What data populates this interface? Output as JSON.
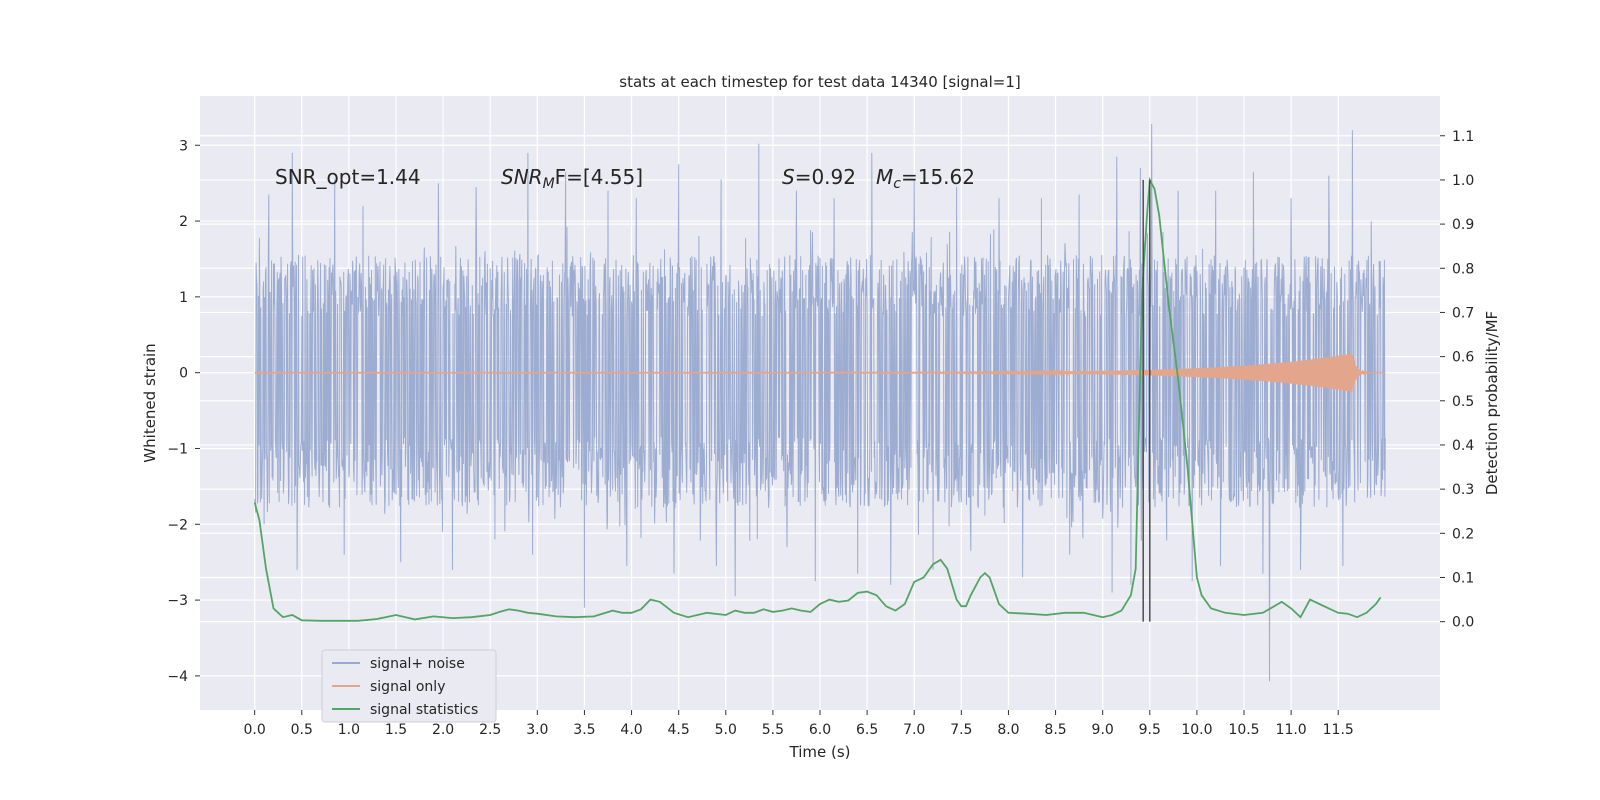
{
  "chart_data": {
    "type": "line",
    "title": "stats at each timestep for test data 14340 [signal=1]",
    "xlabel": "Time (s)",
    "ylabel": "Whitened strain",
    "ylabel_right": "Detection probability/MF",
    "xlim": [
      -0.58,
      12.58
    ],
    "ylim": [
      -4.45,
      3.65
    ],
    "ylim_right": [
      -0.2,
      1.19
    ],
    "x_ticks": [
      0.0,
      0.5,
      1.0,
      1.5,
      2.0,
      2.5,
      3.0,
      3.5,
      4.0,
      4.5,
      5.0,
      5.5,
      6.0,
      6.5,
      7.0,
      7.5,
      8.0,
      8.5,
      9.0,
      9.5,
      10.0,
      10.5,
      11.0,
      11.5
    ],
    "x_tick_labels": [
      "0.0",
      "0.5",
      "1.0",
      "1.5",
      "2.0",
      "2.5",
      "3.0",
      "3.5",
      "4.0",
      "4.5",
      "5.0",
      "5.5",
      "6.0",
      "6.5",
      "7.0",
      "7.5",
      "8.0",
      "8.5",
      "9.0",
      "9.5",
      "10.0",
      "10.5",
      "11.0",
      "11.5"
    ],
    "y_ticks": [
      -4,
      -3,
      -2,
      -1,
      0,
      1,
      2,
      3
    ],
    "y_tick_labels": [
      "−4",
      "−3",
      "−2",
      "−1",
      "0",
      "1",
      "2",
      "3"
    ],
    "y_ticks_right": [
      0.0,
      0.1,
      0.2,
      0.3,
      0.4,
      0.5,
      0.6,
      0.7,
      0.8,
      0.9,
      1.0,
      1.1
    ],
    "y_tick_labels_right": [
      "0.0",
      "0.1",
      "0.2",
      "0.3",
      "0.4",
      "0.5",
      "0.6",
      "0.7",
      "0.8",
      "0.9",
      "1.0",
      "1.1"
    ],
    "grid": true,
    "legend_position": "lower-left",
    "annotations": {
      "snr_opt": "SNR_opt=1.44",
      "snr_mf_main": "SNR",
      "snr_mf_sub": "M",
      "snr_mf_rest": "F=[4.55]",
      "s_main": "S",
      "s_rest": "=0.92",
      "mc_main": "M",
      "mc_sub": "c",
      "mc_rest": "=15.62"
    },
    "vlines_x": [
      9.43,
      9.5
    ],
    "series": [
      {
        "name": "signal+ noise",
        "color": "#99a9cf",
        "axis": "left",
        "x_range": [
          0.0,
          12.0
        ],
        "typical_envelope": [
          -1.55,
          1.35
        ],
        "peaks": [
          {
            "x": 0.05,
            "y": 1.78
          },
          {
            "x": 0.4,
            "y": 2.9
          },
          {
            "x": 0.15,
            "y": 2.35
          },
          {
            "x": 0.85,
            "y": 2.55
          },
          {
            "x": 1.15,
            "y": 2.2
          },
          {
            "x": 1.55,
            "y": 2.9
          },
          {
            "x": 1.95,
            "y": 2.5
          },
          {
            "x": 2.35,
            "y": 2.45
          },
          {
            "x": 2.9,
            "y": 2.9
          },
          {
            "x": 3.3,
            "y": 2.65
          },
          {
            "x": 3.75,
            "y": 2.4
          },
          {
            "x": 4.05,
            "y": 2.3
          },
          {
            "x": 4.5,
            "y": 2.75
          },
          {
            "x": 4.95,
            "y": 2.55
          },
          {
            "x": 5.35,
            "y": 3.02
          },
          {
            "x": 5.75,
            "y": 2.4
          },
          {
            "x": 6.15,
            "y": 2.3
          },
          {
            "x": 6.55,
            "y": 2.9
          },
          {
            "x": 7.0,
            "y": 2.55
          },
          {
            "x": 7.45,
            "y": 2.45
          },
          {
            "x": 7.9,
            "y": 2.3
          },
          {
            "x": 8.35,
            "y": 2.3
          },
          {
            "x": 8.75,
            "y": 2.35
          },
          {
            "x": 9.15,
            "y": 2.85
          },
          {
            "x": 9.4,
            "y": 2.7
          },
          {
            "x": 9.52,
            "y": 3.28
          },
          {
            "x": 9.8,
            "y": 2.4
          },
          {
            "x": 10.2,
            "y": 2.4
          },
          {
            "x": 10.6,
            "y": 2.65
          },
          {
            "x": 11.0,
            "y": 2.3
          },
          {
            "x": 11.4,
            "y": 2.6
          },
          {
            "x": 11.65,
            "y": 3.2
          },
          {
            "x": 11.85,
            "y": 2.0
          }
        ],
        "troughs": [
          {
            "x": 0.1,
            "y": -2.0
          },
          {
            "x": 0.45,
            "y": -2.6
          },
          {
            "x": 0.95,
            "y": -2.4
          },
          {
            "x": 1.55,
            "y": -2.5
          },
          {
            "x": 2.1,
            "y": -2.6
          },
          {
            "x": 2.55,
            "y": -2.2
          },
          {
            "x": 2.95,
            "y": -2.4
          },
          {
            "x": 3.5,
            "y": -3.1
          },
          {
            "x": 3.95,
            "y": -2.55
          },
          {
            "x": 4.45,
            "y": -2.65
          },
          {
            "x": 4.9,
            "y": -2.55
          },
          {
            "x": 5.1,
            "y": -2.95
          },
          {
            "x": 5.65,
            "y": -2.3
          },
          {
            "x": 5.95,
            "y": -2.75
          },
          {
            "x": 6.4,
            "y": -2.65
          },
          {
            "x": 6.75,
            "y": -2.8
          },
          {
            "x": 7.2,
            "y": -2.6
          },
          {
            "x": 7.6,
            "y": -2.35
          },
          {
            "x": 8.15,
            "y": -2.7
          },
          {
            "x": 8.65,
            "y": -2.4
          },
          {
            "x": 9.1,
            "y": -2.9
          },
          {
            "x": 9.3,
            "y": -2.8
          },
          {
            "x": 9.95,
            "y": -2.75
          },
          {
            "x": 10.25,
            "y": -2.55
          },
          {
            "x": 10.7,
            "y": -2.65
          },
          {
            "x": 10.77,
            "y": -4.07
          },
          {
            "x": 11.1,
            "y": -2.6
          },
          {
            "x": 11.55,
            "y": -2.55
          }
        ]
      },
      {
        "name": "signal only",
        "color": "#e3a68c",
        "axis": "left",
        "x_range": [
          0.0,
          12.0
        ],
        "chirp_peak_x": 11.65,
        "chirp_peak_amplitude": 0.25
      },
      {
        "name": "signal statistics",
        "color": "#55a467",
        "axis": "right",
        "x": [
          0.0,
          0.05,
          0.12,
          0.2,
          0.3,
          0.4,
          0.5,
          0.7,
          0.9,
          1.1,
          1.3,
          1.5,
          1.7,
          1.9,
          2.1,
          2.3,
          2.5,
          2.6,
          2.7,
          2.8,
          2.9,
          3.0,
          3.2,
          3.4,
          3.6,
          3.8,
          3.9,
          4.0,
          4.1,
          4.2,
          4.3,
          4.45,
          4.6,
          4.8,
          5.0,
          5.1,
          5.2,
          5.3,
          5.4,
          5.5,
          5.6,
          5.7,
          5.8,
          5.9,
          6.0,
          6.1,
          6.2,
          6.3,
          6.4,
          6.5,
          6.6,
          6.7,
          6.8,
          6.9,
          7.0,
          7.05,
          7.1,
          7.2,
          7.28,
          7.35,
          7.45,
          7.5,
          7.55,
          7.6,
          7.65,
          7.7,
          7.75,
          7.8,
          7.85,
          7.9,
          8.0,
          8.2,
          8.4,
          8.6,
          8.8,
          9.0,
          9.1,
          9.2,
          9.3,
          9.35,
          9.38,
          9.42,
          9.47,
          9.5,
          9.55,
          9.6,
          9.65,
          9.7,
          9.8,
          9.9,
          10.0,
          10.05,
          10.15,
          10.3,
          10.5,
          10.7,
          10.9,
          11.0,
          11.1,
          11.2,
          11.3,
          11.4,
          11.5,
          11.6,
          11.7,
          11.8,
          11.9,
          11.95
        ],
        "values": [
          0.27,
          0.23,
          0.12,
          0.03,
          0.01,
          0.015,
          0.003,
          0.002,
          0.002,
          0.002,
          0.006,
          0.015,
          0.005,
          0.012,
          0.008,
          0.01,
          0.015,
          0.022,
          0.028,
          0.025,
          0.02,
          0.018,
          0.012,
          0.01,
          0.012,
          0.025,
          0.02,
          0.02,
          0.028,
          0.05,
          0.045,
          0.02,
          0.01,
          0.02,
          0.015,
          0.025,
          0.02,
          0.02,
          0.028,
          0.022,
          0.025,
          0.03,
          0.025,
          0.022,
          0.04,
          0.05,
          0.045,
          0.048,
          0.065,
          0.068,
          0.06,
          0.035,
          0.025,
          0.04,
          0.09,
          0.095,
          0.1,
          0.13,
          0.14,
          0.12,
          0.05,
          0.035,
          0.035,
          0.06,
          0.08,
          0.1,
          0.11,
          0.1,
          0.07,
          0.04,
          0.02,
          0.018,
          0.015,
          0.02,
          0.02,
          0.01,
          0.015,
          0.025,
          0.06,
          0.12,
          0.4,
          0.75,
          0.92,
          1.0,
          0.98,
          0.92,
          0.82,
          0.72,
          0.55,
          0.35,
          0.1,
          0.06,
          0.03,
          0.02,
          0.015,
          0.02,
          0.045,
          0.03,
          0.01,
          0.05,
          0.04,
          0.03,
          0.02,
          0.018,
          0.01,
          0.02,
          0.04,
          0.055
        ]
      }
    ]
  }
}
